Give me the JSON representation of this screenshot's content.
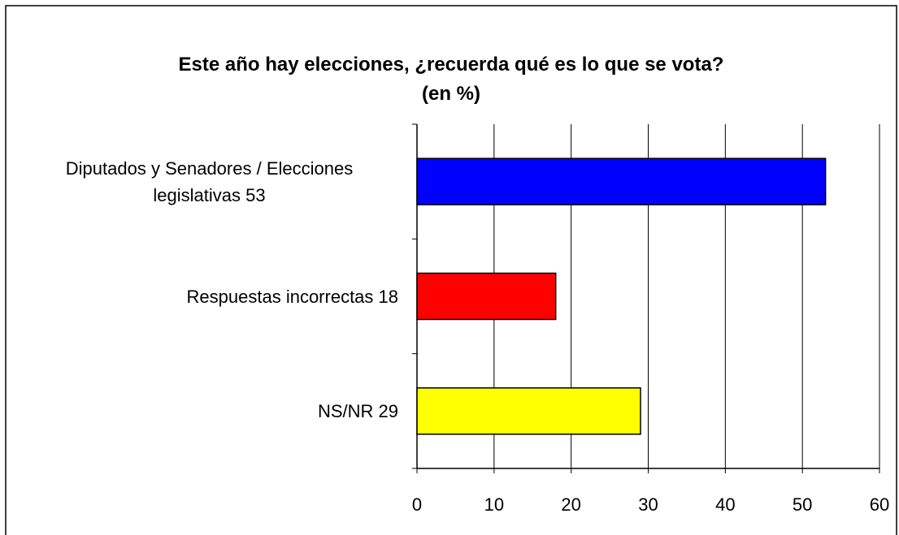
{
  "chart_data": {
    "type": "barh",
    "title": "Este año hay elecciones, ¿recuerda qué es lo que se vota?",
    "subtitle": "(en %)",
    "categories": [
      "Diputados y Senadores / Elecciones legislativas 53",
      "Respuestas incorrectas 18",
      "NS/NR 29"
    ],
    "values": [
      53,
      18,
      29
    ],
    "colors": [
      "#0000ff",
      "#ff0000",
      "#ffff00"
    ],
    "xlim": [
      0,
      60
    ],
    "xticks": [
      0,
      10,
      20,
      30,
      40,
      50,
      60
    ],
    "grid": true
  }
}
